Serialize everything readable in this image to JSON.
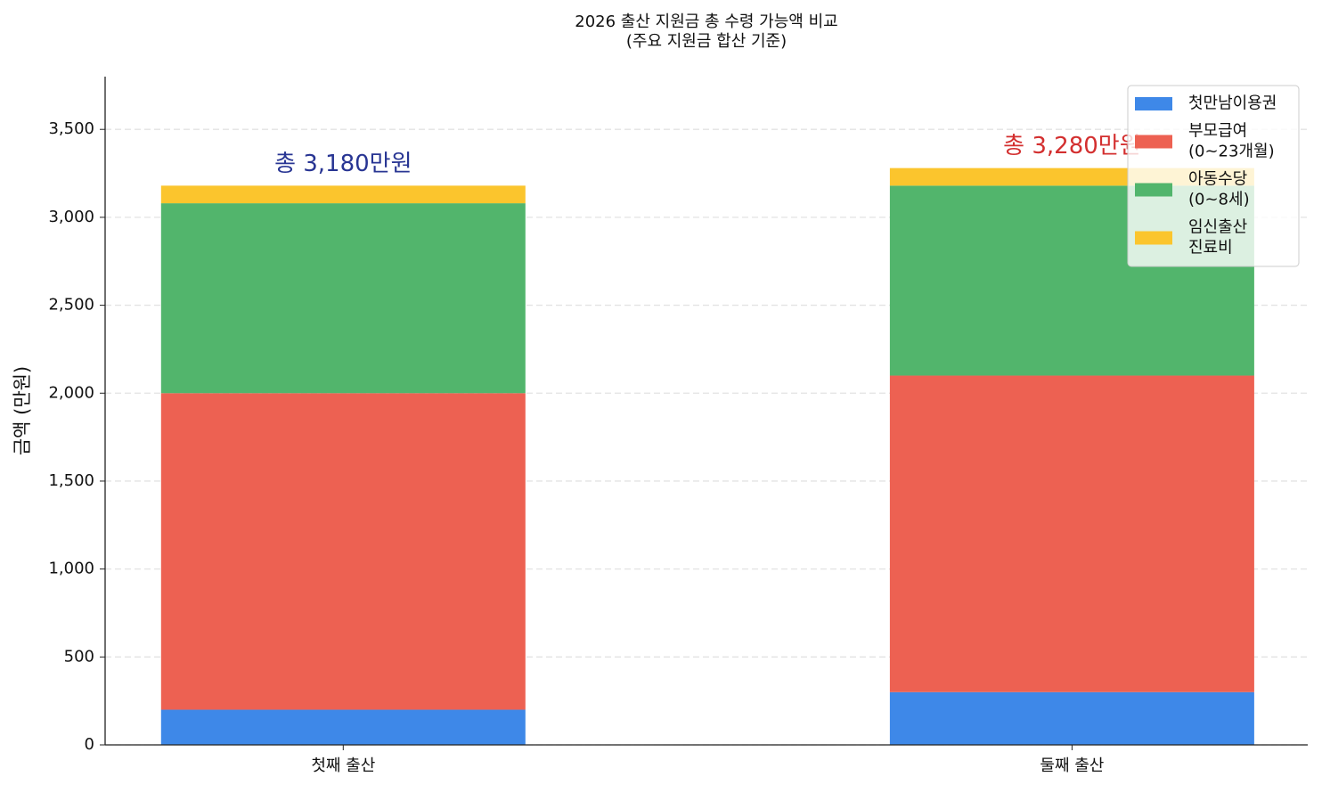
{
  "chart_data": {
    "type": "stacked_bar",
    "title": "2026 출산 지원금 총 수령 가능액 비교\n(주요 지원금 합산 기준)",
    "y_label": "금액 (만원)",
    "categories": [
      "첫째 출산",
      "둘째 출산"
    ],
    "series": [
      {
        "name": "첫만남이용권",
        "color": "#3e88e8",
        "values": [
          200,
          300
        ]
      },
      {
        "name": "부모급여\n(0~23개월)",
        "color": "#ed6152",
        "values": [
          1800,
          1800
        ]
      },
      {
        "name": "아동수당\n(0~8세)",
        "color": "#52b56c",
        "values": [
          1080,
          1080
        ]
      },
      {
        "name": "임신출산\n진료비",
        "color": "#fbc52d",
        "values": [
          100,
          100
        ]
      }
    ],
    "annotations": [
      {
        "text": "총 3,180만원",
        "color": "#283593"
      },
      {
        "text": "총 3,280만원",
        "color": "#d32f2f"
      }
    ],
    "ylim": [
      0,
      3800
    ],
    "yticks": [
      0,
      500,
      {
        "value": 1000,
        "label": "1,000"
      },
      {
        "value": 1500,
        "label": "1,500"
      },
      {
        "value": 2000,
        "label": "2,000"
      },
      {
        "value": 2500,
        "label": "2,500"
      },
      {
        "value": 3000,
        "label": "3,000"
      },
      {
        "value": 3500,
        "label": "3,500"
      }
    ],
    "grid": true,
    "legend": "upper right"
  }
}
